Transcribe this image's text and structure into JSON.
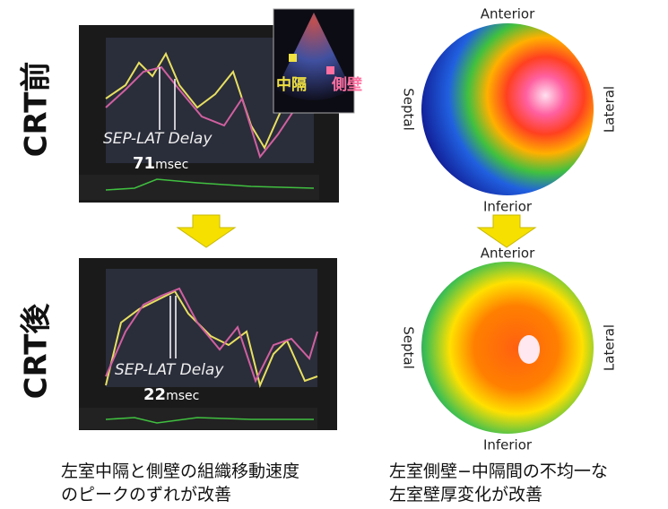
{
  "rows": [
    {
      "label": "CRT前",
      "delay_label": "SEP-LAT Delay",
      "delay_value": "71",
      "delay_unit": "msec",
      "inset": [
        "中隔",
        "側壁"
      ]
    },
    {
      "label": "CRT後",
      "delay_label": "SEP-LAT Delay",
      "delay_value": "22",
      "delay_unit": "msec"
    }
  ],
  "maps": [
    {
      "top": "Anterior",
      "left": "Septal",
      "right": "Lateral",
      "bottom": "Inferior"
    },
    {
      "top": "Anterior",
      "left": "Septal",
      "right": "Lateral",
      "bottom": "Inferior"
    }
  ],
  "captions": [
    [
      "左室中隔と側壁の組織移動速度",
      "のピークのずれが改善"
    ],
    [
      "左室側壁−中隔間の不均一な",
      "左室壁厚変化が改善"
    ]
  ]
}
